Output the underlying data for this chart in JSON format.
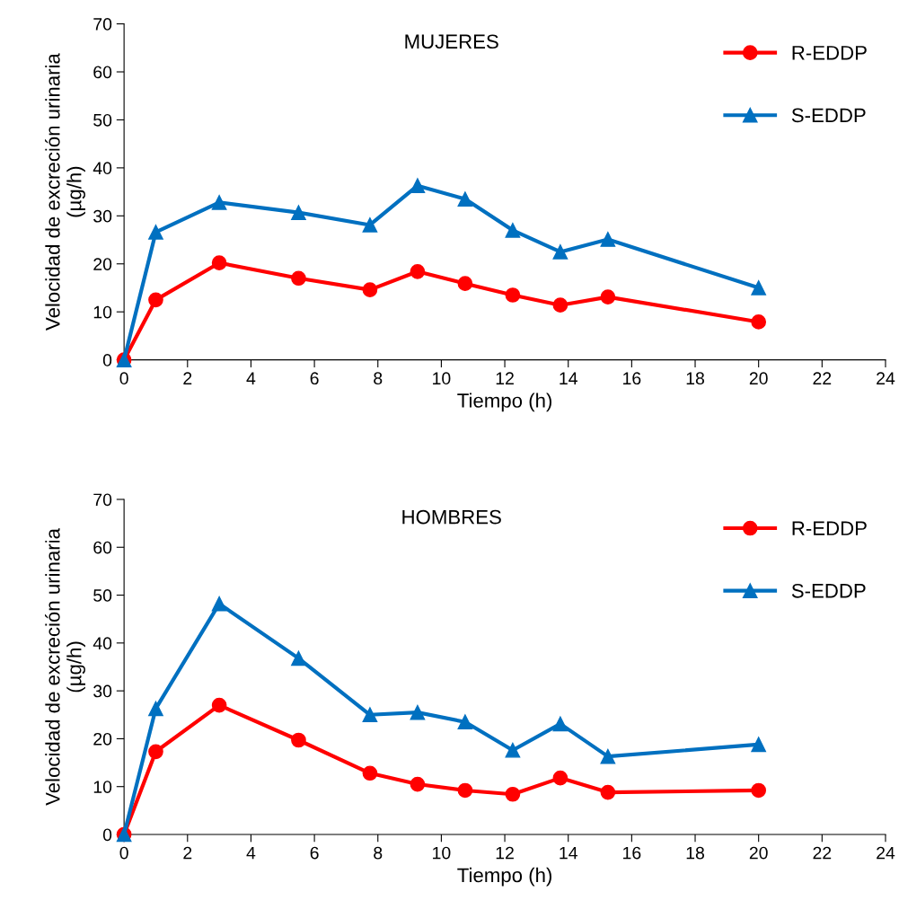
{
  "chart_data": [
    {
      "type": "line",
      "title": "MUJERES",
      "xlabel": "Tiempo (h)",
      "ylabel": "Velocidad de excreción urinaria\n(µg/h)",
      "x": [
        0,
        1,
        3,
        5.5,
        7.75,
        9.25,
        10.75,
        12.25,
        13.75,
        15.25,
        20
      ],
      "xlim": [
        0,
        24
      ],
      "xticks": [
        0,
        2,
        4,
        6,
        8,
        10,
        12,
        14,
        16,
        18,
        20,
        22,
        24
      ],
      "ylim": [
        0,
        70
      ],
      "yticks": [
        0,
        10,
        20,
        30,
        40,
        50,
        60,
        70
      ],
      "grid": false,
      "legend": "top right",
      "series": [
        {
          "name": "R-EDDP",
          "color": "#ff0000",
          "marker": "circle",
          "values": [
            0,
            12.5,
            20.2,
            17.0,
            14.6,
            18.4,
            15.9,
            13.5,
            11.4,
            13.1,
            7.9
          ]
        },
        {
          "name": "S-EDDP",
          "color": "#0070c0",
          "marker": "triangle",
          "values": [
            0,
            26.6,
            32.8,
            30.7,
            28.1,
            36.3,
            33.5,
            27.0,
            22.5,
            25.1,
            15.0
          ]
        }
      ]
    },
    {
      "type": "line",
      "title": "HOMBRES",
      "xlabel": "Tiempo (h)",
      "ylabel": "Velocidad de excreción urinaria\n(µg/h)",
      "x": [
        0,
        1,
        3,
        5.5,
        7.75,
        9.25,
        10.75,
        12.25,
        13.75,
        15.25,
        20
      ],
      "xlim": [
        0,
        24
      ],
      "xticks": [
        0,
        2,
        4,
        6,
        8,
        10,
        12,
        14,
        16,
        18,
        20,
        22,
        24
      ],
      "ylim": [
        0,
        70
      ],
      "yticks": [
        0,
        10,
        20,
        30,
        40,
        50,
        60,
        70
      ],
      "grid": false,
      "legend": "top right",
      "series": [
        {
          "name": "R-EDDP",
          "color": "#ff0000",
          "marker": "circle",
          "values": [
            0,
            17.3,
            27.0,
            19.7,
            12.8,
            10.5,
            9.2,
            8.4,
            11.8,
            8.8,
            9.2
          ]
        },
        {
          "name": "S-EDDP",
          "color": "#0070c0",
          "marker": "triangle",
          "values": [
            0,
            26.3,
            48.2,
            36.8,
            25.0,
            25.5,
            23.5,
            17.6,
            23.1,
            16.3,
            18.8
          ]
        }
      ]
    }
  ]
}
